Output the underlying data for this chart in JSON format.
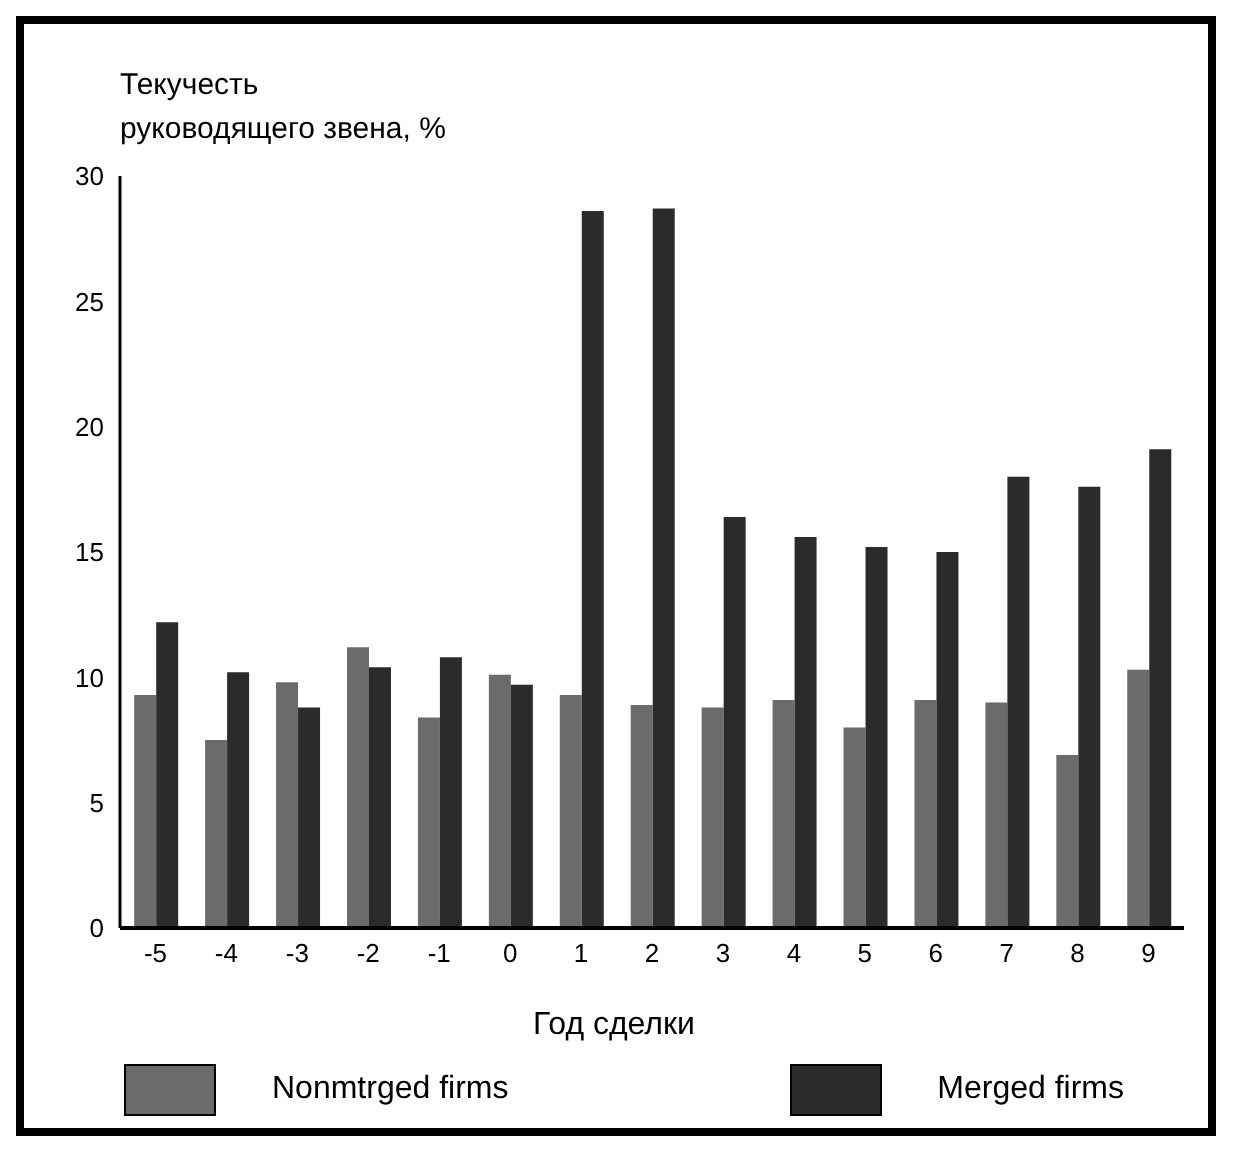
{
  "chart_data": {
    "type": "bar",
    "ylabel": "Текучесть\nруководящего звена, %",
    "xlabel": "Год сделки",
    "categories": [
      "-5",
      "-4",
      "-3",
      "-2",
      "-1",
      "0",
      "1",
      "2",
      "3",
      "4",
      "5",
      "6",
      "7",
      "8",
      "9"
    ],
    "series": [
      {
        "name": "Nonmtrged firms",
        "color": "#6b6b6b",
        "values": [
          9.3,
          7.5,
          9.8,
          11.2,
          8.4,
          10.1,
          9.3,
          8.9,
          8.8,
          9.1,
          8.0,
          9.1,
          9.0,
          6.9,
          10.3
        ]
      },
      {
        "name": "Merged firms",
        "color": "#2b2b2b",
        "values": [
          12.2,
          10.2,
          8.8,
          10.4,
          10.8,
          9.7,
          28.6,
          28.7,
          16.4,
          15.6,
          15.2,
          15.0,
          18.0,
          17.6,
          19.1
        ]
      }
    ],
    "ylim": [
      0,
      30
    ],
    "yticks": [
      0,
      5,
      10,
      15,
      20,
      25,
      30
    ],
    "legend": "bottom"
  }
}
